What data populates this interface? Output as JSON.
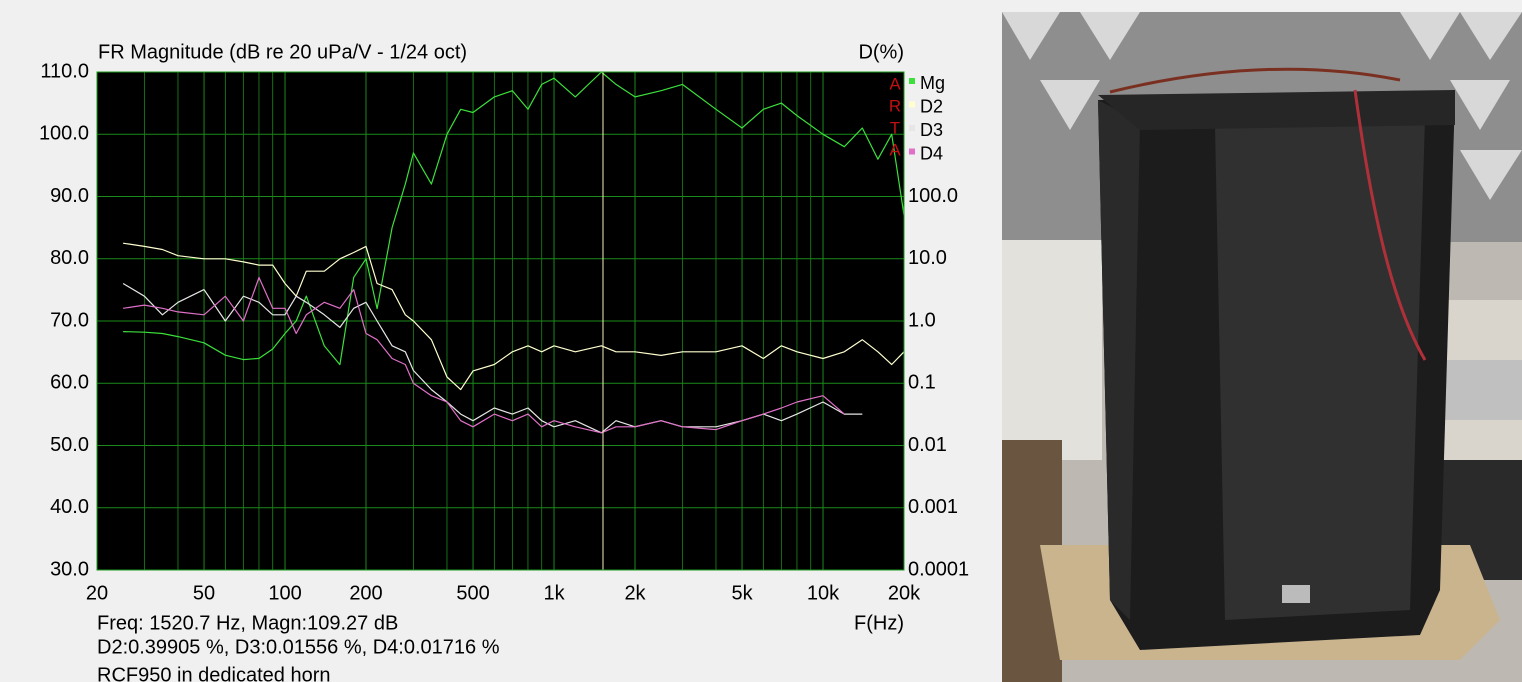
{
  "chart_data": {
    "type": "line",
    "title": "FR Magnitude (dB re 20 uPa/V - 1/24 oct)",
    "y2_label": "D(%)",
    "x_label": "F(Hz)",
    "logo": [
      "A",
      "R",
      "T",
      "A"
    ],
    "readout": [
      "Freq: 1520.7 Hz, Magn:109.27 dB",
      "D2:0.39905 %, D3:0.01556 %, D4:0.01716 %",
      "RCF950 in dedicated horn"
    ],
    "cursor_x": 1520.7,
    "x_log": true,
    "y2_log": true,
    "grid": true,
    "xlim": [
      20,
      20000
    ],
    "xticks": [
      20,
      50,
      100,
      200,
      500,
      {
        "value": 1000,
        "label": "1k"
      },
      {
        "value": 2000,
        "label": "2k"
      },
      {
        "value": 5000,
        "label": "5k"
      },
      {
        "value": 10000,
        "label": "10k"
      },
      {
        "value": 20000,
        "label": "20k"
      }
    ],
    "xminor": [
      30,
      40,
      60,
      70,
      80,
      90,
      300,
      400,
      600,
      700,
      800,
      900,
      3000,
      4000,
      6000,
      7000,
      8000,
      9000
    ],
    "ylim": [
      30,
      110
    ],
    "yticks": [
      {
        "value": 30,
        "label": "30.0"
      },
      {
        "value": 40,
        "label": "40.0"
      },
      {
        "value": 50,
        "label": "50.0"
      },
      {
        "value": 60,
        "label": "60.0"
      },
      {
        "value": 70,
        "label": "70.0"
      },
      {
        "value": 80,
        "label": "80.0"
      },
      {
        "value": 90,
        "label": "90.0"
      },
      {
        "value": 100,
        "label": "100.0"
      },
      {
        "value": 110,
        "label": "110.0"
      }
    ],
    "y2lim": [
      0.0001,
      10000
    ],
    "y2ticks": [
      0.0001,
      0.001,
      0.01,
      0.1,
      {
        "value": 1,
        "label": "1.0"
      },
      {
        "value": 10,
        "label": "10.0"
      },
      {
        "value": 100,
        "label": "100.0"
      }
    ],
    "x": [
      25,
      30,
      35,
      40,
      50,
      60,
      70,
      80,
      90,
      100,
      110,
      120,
      140,
      160,
      180,
      200,
      220,
      250,
      280,
      300,
      350,
      400,
      450,
      500,
      600,
      700,
      800,
      900,
      1000,
      1200,
      1500,
      1700,
      2000,
      2500,
      3000,
      4000,
      5000,
      6000,
      7000,
      8000,
      10000,
      12000,
      14000,
      16000,
      18000,
      20000
    ],
    "series": [
      {
        "name": "Mg",
        "color": "#3be03b",
        "values": [
          68.3,
          68.2,
          68,
          67.5,
          66.5,
          64.5,
          63.8,
          64,
          65.5,
          68,
          70,
          74,
          66,
          63,
          77,
          80,
          72,
          85,
          92,
          97,
          92,
          100,
          104,
          103.5,
          106,
          107,
          104,
          108,
          109,
          106,
          110,
          108,
          106,
          107,
          108,
          104,
          101,
          104,
          105,
          103,
          100,
          98,
          101,
          96,
          100,
          87
        ]
      },
      {
        "name": "D2",
        "color": "#ffffd0",
        "axis": "y2",
        "values": [
          17.8,
          15.8,
          14.1,
          11.2,
          10,
          10,
          8.9,
          7.9,
          7.9,
          4,
          2.5,
          6.3,
          6.3,
          10,
          12.6,
          15.8,
          4,
          3.2,
          1.26,
          1,
          0.5,
          0.126,
          0.079,
          0.158,
          0.2,
          0.32,
          0.4,
          0.32,
          0.4,
          0.32,
          0.4,
          0.32,
          0.32,
          0.28,
          0.32,
          0.32,
          0.4,
          0.25,
          0.4,
          0.32,
          0.25,
          0.32,
          0.5,
          0.32,
          0.2,
          0.32
        ]
      },
      {
        "name": "D3",
        "color": "#e6e6e6",
        "axis": "y2",
        "values": [
          4,
          2.5,
          1.26,
          2,
          3.2,
          1,
          2.5,
          2,
          1.26,
          1.26,
          2.5,
          2,
          1.26,
          0.79,
          1.6,
          2,
          1,
          0.4,
          0.32,
          0.16,
          0.079,
          0.05,
          0.032,
          0.025,
          0.04,
          0.032,
          0.04,
          0.025,
          0.02,
          0.025,
          0.016,
          0.025,
          0.02,
          0.025,
          0.02,
          0.02,
          0.025,
          0.032,
          0.025,
          0.032,
          0.05,
          0.032,
          0.032,
          null,
          null,
          null
        ]
      },
      {
        "name": "D4",
        "color": "#e070c8",
        "axis": "y2",
        "values": [
          1.6,
          1.8,
          1.6,
          1.4,
          1.26,
          2.5,
          1,
          5,
          1.6,
          1.6,
          0.63,
          1.26,
          2,
          1.6,
          3.2,
          0.63,
          0.5,
          0.25,
          0.2,
          0.1,
          0.063,
          0.05,
          0.025,
          0.02,
          0.032,
          0.025,
          0.032,
          0.02,
          0.025,
          0.02,
          0.016,
          0.02,
          0.02,
          0.025,
          0.02,
          0.018,
          0.025,
          0.032,
          0.04,
          0.05,
          0.063,
          0.032,
          null,
          null,
          null,
          null
        ]
      }
    ]
  }
}
